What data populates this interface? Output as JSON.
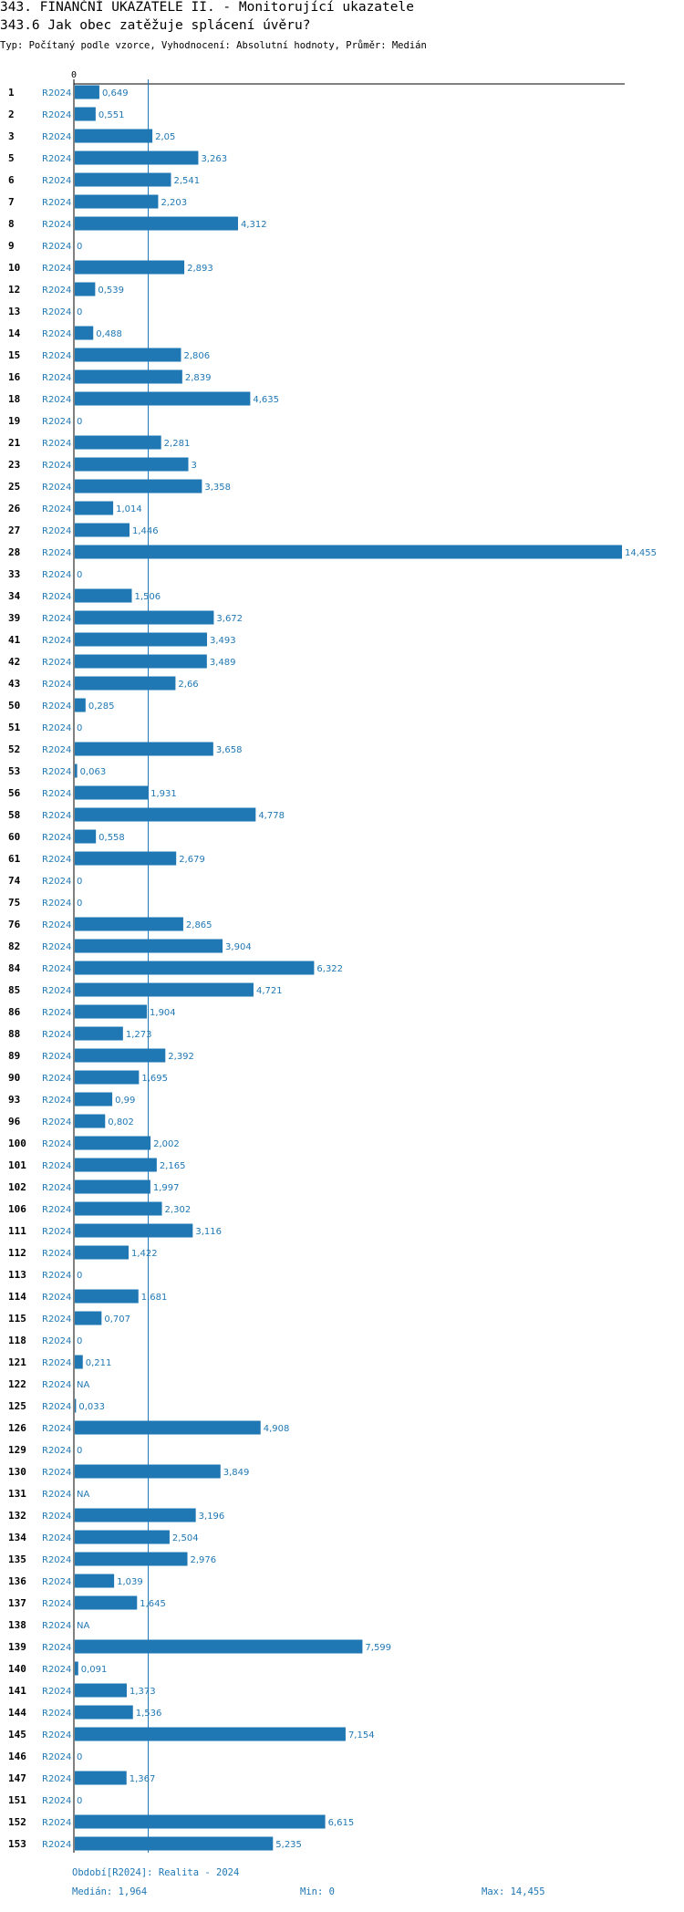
{
  "header": {
    "title": "343. FINANČNÍ UKAZATELE II. - Monitorující ukazatele",
    "subtitle": "343.6 Jak obec zatěžuje splácení úvěru?",
    "meta": "Typ: Počítaný podle vzorce, Vyhodnocení: Absolutní hodnoty, Průměr: Medián"
  },
  "footer": {
    "period": "Období[R2024]: Realita - 2024",
    "median": "Medián: 1,964",
    "min": "Min: 0",
    "max": "Max: 14,455"
  },
  "colors": {
    "bar": "#1f77b4",
    "label": "#1f77b4",
    "axis": "#000000",
    "median_line": "#1f77b4"
  },
  "chart_data": {
    "type": "bar",
    "orientation": "horizontal",
    "series_label": "R2024",
    "x_tick_label": "0",
    "xlim": [
      0,
      14.455
    ],
    "median": 1.964,
    "rows": [
      {
        "id": "1",
        "value": 0.649,
        "label": "0,649"
      },
      {
        "id": "2",
        "value": 0.551,
        "label": "0,551"
      },
      {
        "id": "3",
        "value": 2.05,
        "label": "2,05"
      },
      {
        "id": "5",
        "value": 3.263,
        "label": "3,263"
      },
      {
        "id": "6",
        "value": 2.541,
        "label": "2,541"
      },
      {
        "id": "7",
        "value": 2.203,
        "label": "2,203"
      },
      {
        "id": "8",
        "value": 4.312,
        "label": "4,312"
      },
      {
        "id": "9",
        "value": 0,
        "label": "0"
      },
      {
        "id": "10",
        "value": 2.893,
        "label": "2,893"
      },
      {
        "id": "12",
        "value": 0.539,
        "label": "0,539"
      },
      {
        "id": "13",
        "value": 0,
        "label": "0"
      },
      {
        "id": "14",
        "value": 0.488,
        "label": "0,488"
      },
      {
        "id": "15",
        "value": 2.806,
        "label": "2,806"
      },
      {
        "id": "16",
        "value": 2.839,
        "label": "2,839"
      },
      {
        "id": "18",
        "value": 4.635,
        "label": "4,635"
      },
      {
        "id": "19",
        "value": 0,
        "label": "0"
      },
      {
        "id": "21",
        "value": 2.281,
        "label": "2,281"
      },
      {
        "id": "23",
        "value": 3,
        "label": "3"
      },
      {
        "id": "25",
        "value": 3.358,
        "label": "3,358"
      },
      {
        "id": "26",
        "value": 1.014,
        "label": "1,014"
      },
      {
        "id": "27",
        "value": 1.446,
        "label": "1,446"
      },
      {
        "id": "28",
        "value": 14.455,
        "label": "14,455"
      },
      {
        "id": "33",
        "value": 0,
        "label": "0"
      },
      {
        "id": "34",
        "value": 1.506,
        "label": "1,506"
      },
      {
        "id": "39",
        "value": 3.672,
        "label": "3,672"
      },
      {
        "id": "41",
        "value": 3.493,
        "label": "3,493"
      },
      {
        "id": "42",
        "value": 3.489,
        "label": "3,489"
      },
      {
        "id": "43",
        "value": 2.66,
        "label": "2,66"
      },
      {
        "id": "50",
        "value": 0.285,
        "label": "0,285"
      },
      {
        "id": "51",
        "value": 0,
        "label": "0"
      },
      {
        "id": "52",
        "value": 3.658,
        "label": "3,658"
      },
      {
        "id": "53",
        "value": 0.063,
        "label": "0,063"
      },
      {
        "id": "56",
        "value": 1.931,
        "label": "1,931"
      },
      {
        "id": "58",
        "value": 4.778,
        "label": "4,778"
      },
      {
        "id": "60",
        "value": 0.558,
        "label": "0,558"
      },
      {
        "id": "61",
        "value": 2.679,
        "label": "2,679"
      },
      {
        "id": "74",
        "value": 0,
        "label": "0"
      },
      {
        "id": "75",
        "value": 0,
        "label": "0"
      },
      {
        "id": "76",
        "value": 2.865,
        "label": "2,865"
      },
      {
        "id": "82",
        "value": 3.904,
        "label": "3,904"
      },
      {
        "id": "84",
        "value": 6.322,
        "label": "6,322"
      },
      {
        "id": "85",
        "value": 4.721,
        "label": "4,721"
      },
      {
        "id": "86",
        "value": 1.904,
        "label": "1,904"
      },
      {
        "id": "88",
        "value": 1.273,
        "label": "1,273"
      },
      {
        "id": "89",
        "value": 2.392,
        "label": "2,392"
      },
      {
        "id": "90",
        "value": 1.695,
        "label": "1,695"
      },
      {
        "id": "93",
        "value": 0.99,
        "label": "0,99"
      },
      {
        "id": "96",
        "value": 0.802,
        "label": "0,802"
      },
      {
        "id": "100",
        "value": 2.002,
        "label": "2,002"
      },
      {
        "id": "101",
        "value": 2.165,
        "label": "2,165"
      },
      {
        "id": "102",
        "value": 1.997,
        "label": "1,997"
      },
      {
        "id": "106",
        "value": 2.302,
        "label": "2,302"
      },
      {
        "id": "111",
        "value": 3.116,
        "label": "3,116"
      },
      {
        "id": "112",
        "value": 1.422,
        "label": "1,422"
      },
      {
        "id": "113",
        "value": 0,
        "label": "0"
      },
      {
        "id": "114",
        "value": 1.681,
        "label": "1,681"
      },
      {
        "id": "115",
        "value": 0.707,
        "label": "0,707"
      },
      {
        "id": "118",
        "value": 0,
        "label": "0"
      },
      {
        "id": "121",
        "value": 0.211,
        "label": "0,211"
      },
      {
        "id": "122",
        "value": null,
        "label": "NA"
      },
      {
        "id": "125",
        "value": 0.033,
        "label": "0,033"
      },
      {
        "id": "126",
        "value": 4.908,
        "label": "4,908"
      },
      {
        "id": "129",
        "value": 0,
        "label": "0"
      },
      {
        "id": "130",
        "value": 3.849,
        "label": "3,849"
      },
      {
        "id": "131",
        "value": null,
        "label": "NA"
      },
      {
        "id": "132",
        "value": 3.196,
        "label": "3,196"
      },
      {
        "id": "134",
        "value": 2.504,
        "label": "2,504"
      },
      {
        "id": "135",
        "value": 2.976,
        "label": "2,976"
      },
      {
        "id": "136",
        "value": 1.039,
        "label": "1,039"
      },
      {
        "id": "137",
        "value": 1.645,
        "label": "1,645"
      },
      {
        "id": "138",
        "value": null,
        "label": "NA"
      },
      {
        "id": "139",
        "value": 7.599,
        "label": "7,599"
      },
      {
        "id": "140",
        "value": 0.091,
        "label": "0,091"
      },
      {
        "id": "141",
        "value": 1.373,
        "label": "1,373"
      },
      {
        "id": "144",
        "value": 1.536,
        "label": "1,536"
      },
      {
        "id": "145",
        "value": 7.154,
        "label": "7,154"
      },
      {
        "id": "146",
        "value": 0,
        "label": "0"
      },
      {
        "id": "147",
        "value": 1.367,
        "label": "1,367"
      },
      {
        "id": "151",
        "value": 0,
        "label": "0"
      },
      {
        "id": "152",
        "value": 6.615,
        "label": "6,615"
      },
      {
        "id": "153",
        "value": 5.235,
        "label": "5,235"
      }
    ]
  }
}
